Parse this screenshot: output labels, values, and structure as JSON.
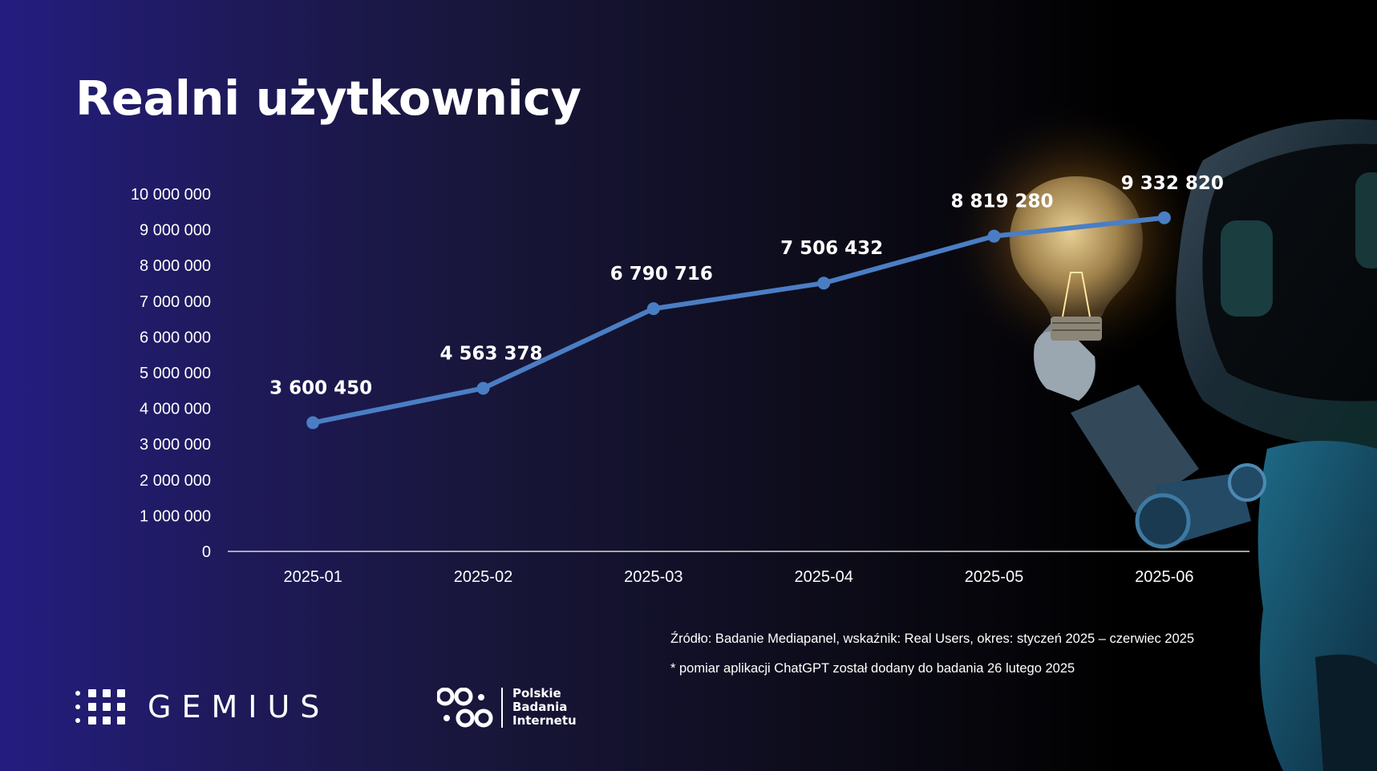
{
  "title": "Realni użytkownicy",
  "chart_data": {
    "type": "line",
    "categories": [
      "2025-01",
      "2025-02",
      "2025-03",
      "2025-04",
      "2025-05",
      "2025-06"
    ],
    "values": [
      3600450,
      4563378,
      6790716,
      7506432,
      8819280,
      9332820
    ],
    "data_labels": [
      "3 600 450",
      "4 563 378",
      "6 790 716",
      "7 506 432",
      "8 819 280",
      "9 332 820"
    ],
    "y_ticks": [
      "0",
      "1 000 000",
      "2 000 000",
      "3 000 000",
      "4 000 000",
      "5 000 000",
      "6 000 000",
      "7 000 000",
      "8 000 000",
      "9 000 000",
      "10 000 000"
    ],
    "ylim": [
      0,
      10000000
    ],
    "grid": false,
    "line_color": "#4a7ec4"
  },
  "source_note": "Źródło: Badanie Mediapanel, wskaźnik: Real Users, okres: styczeń 2025 – czerwiec 2025",
  "footnote": "* pomiar aplikacji ChatGPT został dodany do badania 26 lutego 2025",
  "logos": {
    "gemius": "GEMIUS",
    "pbi_lines": [
      "Polskie",
      "Badania",
      "Internetu"
    ]
  }
}
